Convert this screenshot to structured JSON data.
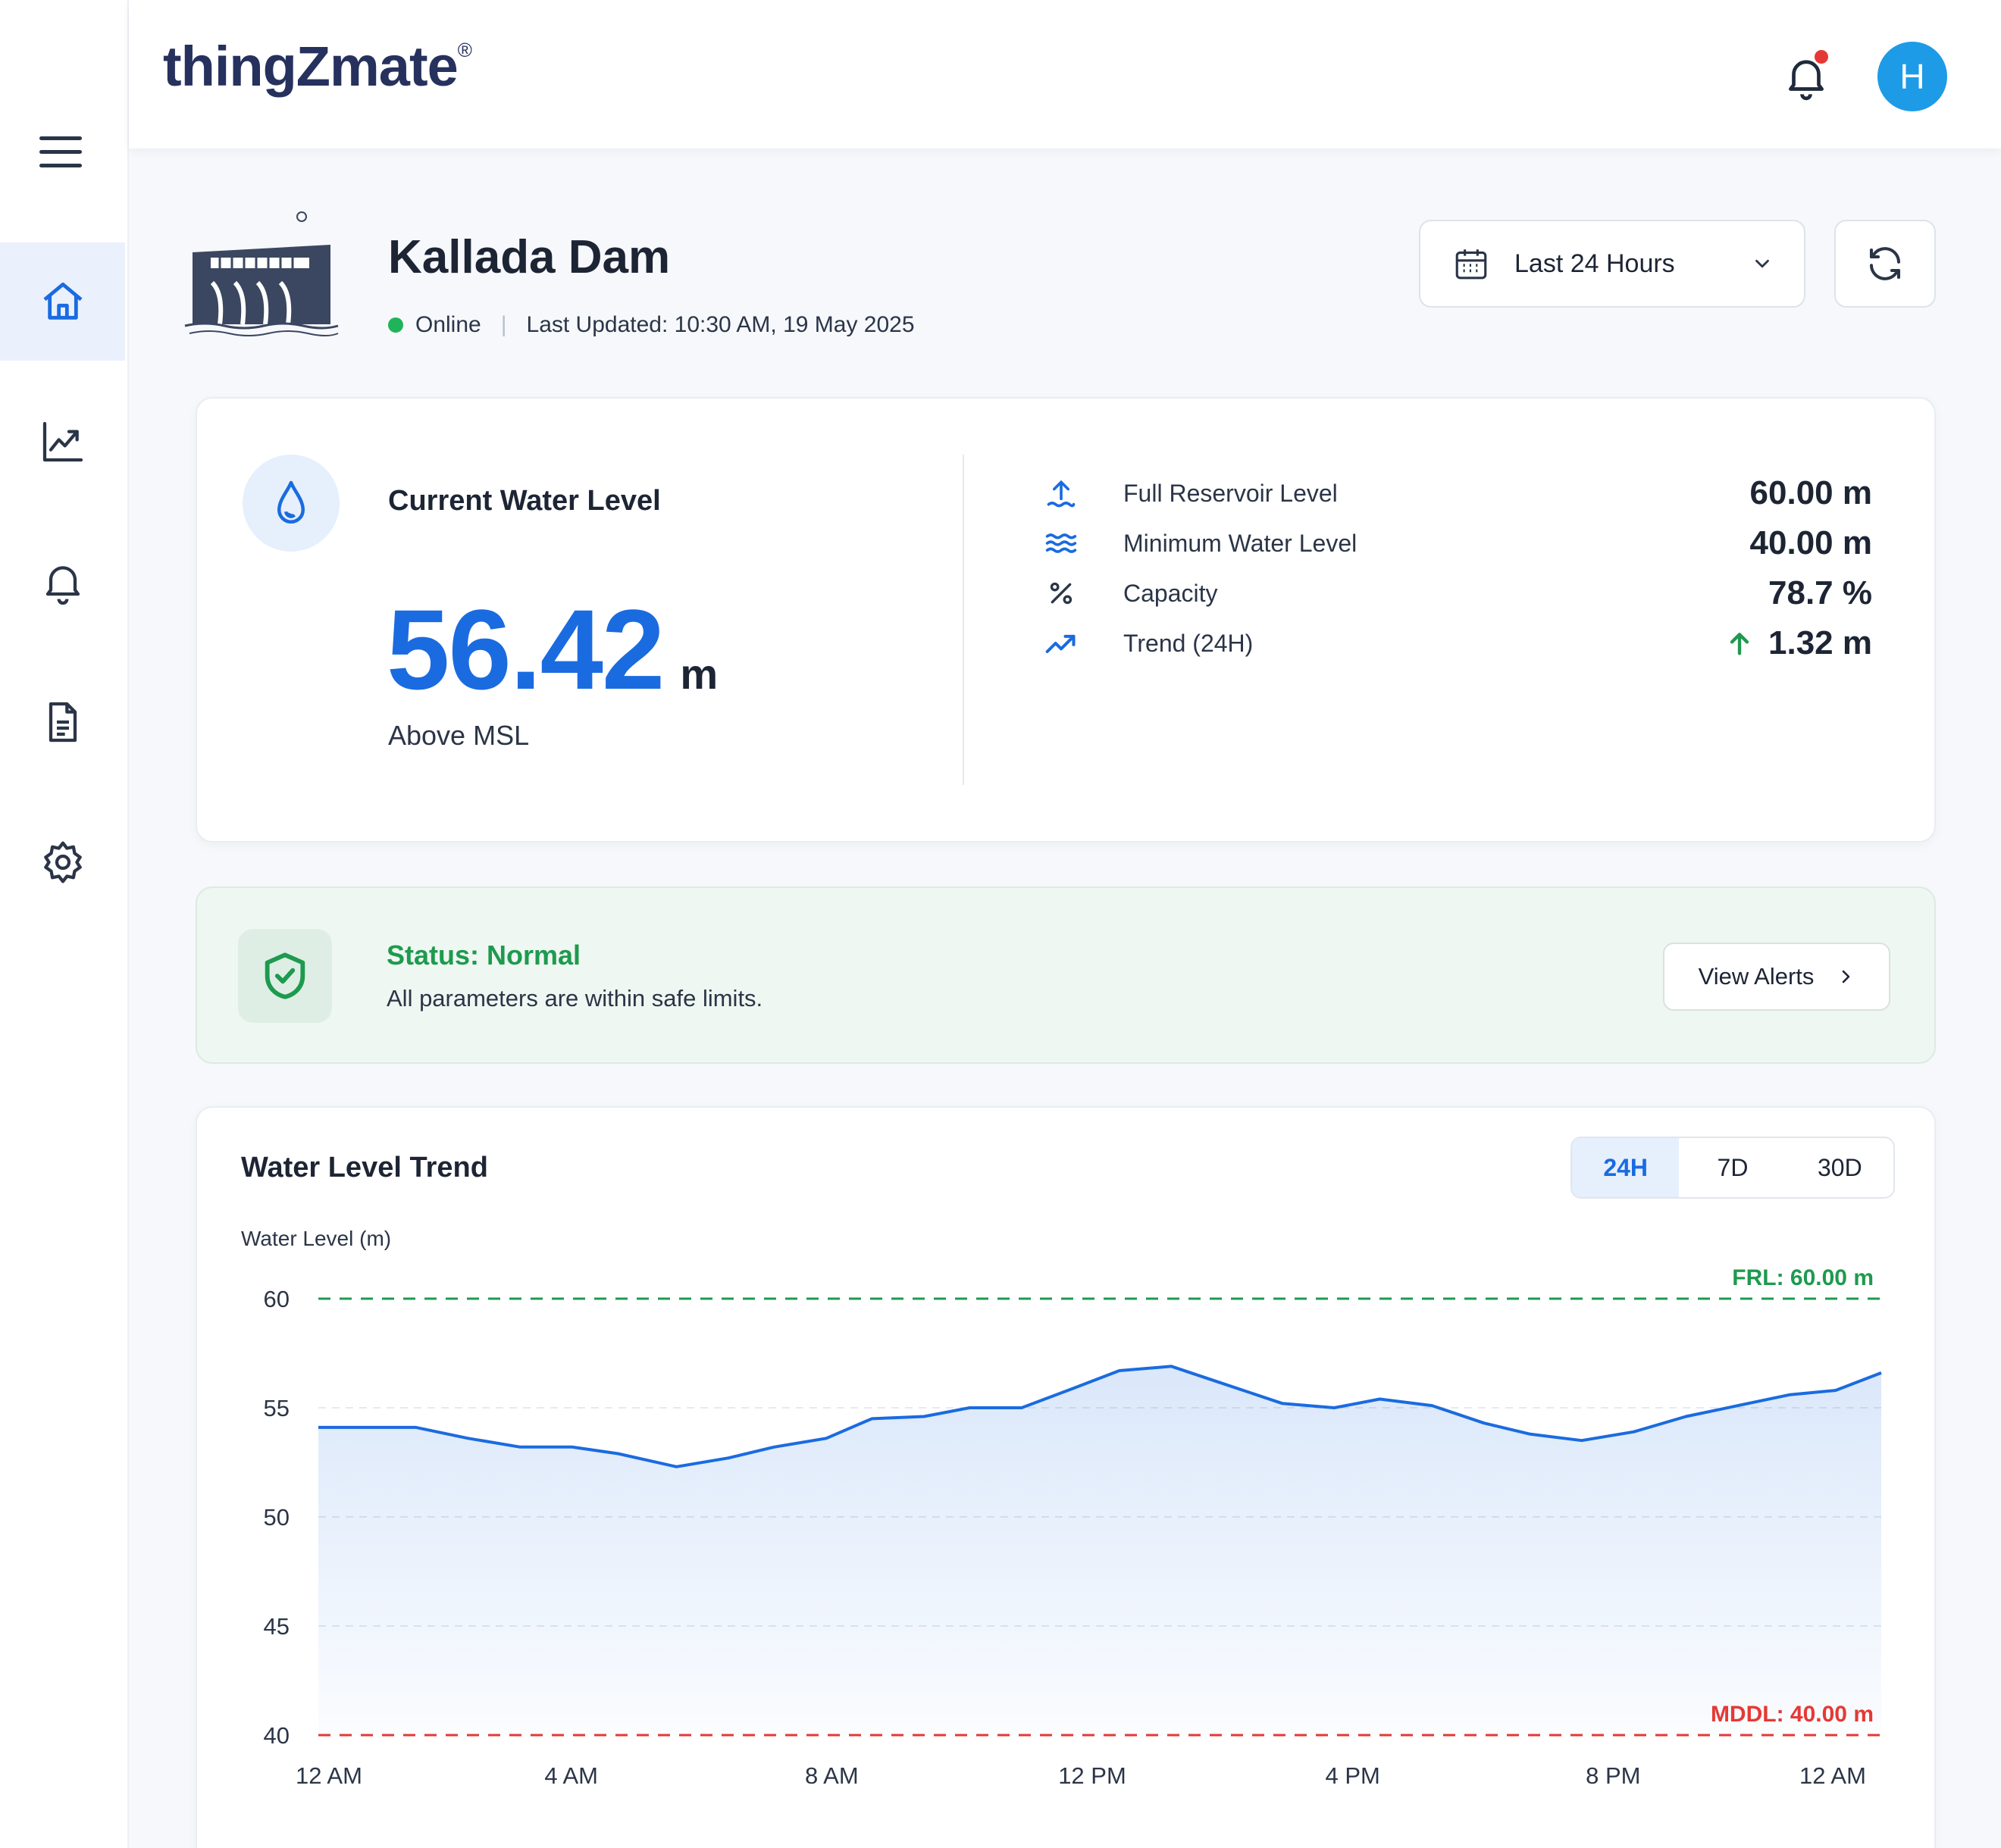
{
  "app": {
    "logo_text": "thingZmate",
    "logo_mark": "®",
    "user_initial": "H"
  },
  "sidebar": {
    "items": [
      {
        "icon": "home-icon",
        "active": true
      },
      {
        "icon": "chart-icon",
        "active": false
      },
      {
        "icon": "bell-icon",
        "active": false
      },
      {
        "icon": "document-icon",
        "active": false
      },
      {
        "icon": "gear-icon",
        "active": false
      }
    ]
  },
  "dam": {
    "name": "Kallada Dam",
    "status": "Online",
    "last_updated": "Last Updated: 10:30 AM, 19 May 2025"
  },
  "controls": {
    "range_label": "Last 24 Hours"
  },
  "level": {
    "title": "Current Water Level",
    "value": "56.42",
    "unit": "m",
    "sub": "Above MSL",
    "stats": [
      {
        "name": "Full Reservoir Level",
        "value": "60.00 m",
        "icon": "arrow-up-water-icon"
      },
      {
        "name": "Minimum Water Level",
        "value": "40.00 m",
        "icon": "waves-icon"
      },
      {
        "name": "Capacity",
        "value": "78.7 %",
        "icon": "percent-icon"
      },
      {
        "name": "Trend (24H)",
        "value": "1.32 m",
        "icon": "trend-up-icon"
      }
    ]
  },
  "status": {
    "title": "Status: Normal",
    "description": "All parameters are within safe limits.",
    "button": "View Alerts"
  },
  "trend": {
    "title": "Water Level Trend",
    "tabs": [
      "24H",
      "7D",
      "30D"
    ],
    "active_tab": "24H"
  },
  "colors": {
    "accent": "#1a6be0",
    "ok": "#1e9a4f",
    "danger": "#e53935"
  },
  "chart_data": {
    "type": "area",
    "ylabel": "Water Level (m)",
    "ylim": [
      40,
      60
    ],
    "yticks": [
      60,
      55,
      50,
      45,
      40
    ],
    "xlim": [
      0,
      24
    ],
    "xticks": [
      {
        "x": 0,
        "label": "12 AM"
      },
      {
        "x": 4,
        "label": "4 AM"
      },
      {
        "x": 8,
        "label": "8 AM"
      },
      {
        "x": 12,
        "label": "12 PM"
      },
      {
        "x": 16,
        "label": "4 PM"
      },
      {
        "x": 20,
        "label": "8 PM"
      },
      {
        "x": 24,
        "label": "12 AM"
      }
    ],
    "x": [
      0,
      0.8,
      1.5,
      2.3,
      3.1,
      3.9,
      4.6,
      5.5,
      6.3,
      7.0,
      7.8,
      8.5,
      9.3,
      10.0,
      10.8,
      11.6,
      12.3,
      13.1,
      13.9,
      14.8,
      15.6,
      16.3,
      17.1,
      17.9,
      18.6,
      19.4,
      20.2,
      21.0,
      21.8,
      22.6,
      23.3,
      24.0
    ],
    "values": [
      54.1,
      54.1,
      54.1,
      53.6,
      53.2,
      53.2,
      52.9,
      52.3,
      52.7,
      53.2,
      53.6,
      54.5,
      54.6,
      55.0,
      55.0,
      55.9,
      56.7,
      56.9,
      56.1,
      55.2,
      55.0,
      55.4,
      55.1,
      54.3,
      53.8,
      53.5,
      53.9,
      54.6,
      55.1,
      55.6,
      55.8,
      56.6
    ],
    "reference_lines": [
      {
        "label": "FRL: 60.00 m",
        "value": 60,
        "color": "#1e9a4f"
      },
      {
        "label": "MDDL: 40.00 m",
        "value": 40,
        "color": "#e53935"
      }
    ],
    "grid": true
  }
}
